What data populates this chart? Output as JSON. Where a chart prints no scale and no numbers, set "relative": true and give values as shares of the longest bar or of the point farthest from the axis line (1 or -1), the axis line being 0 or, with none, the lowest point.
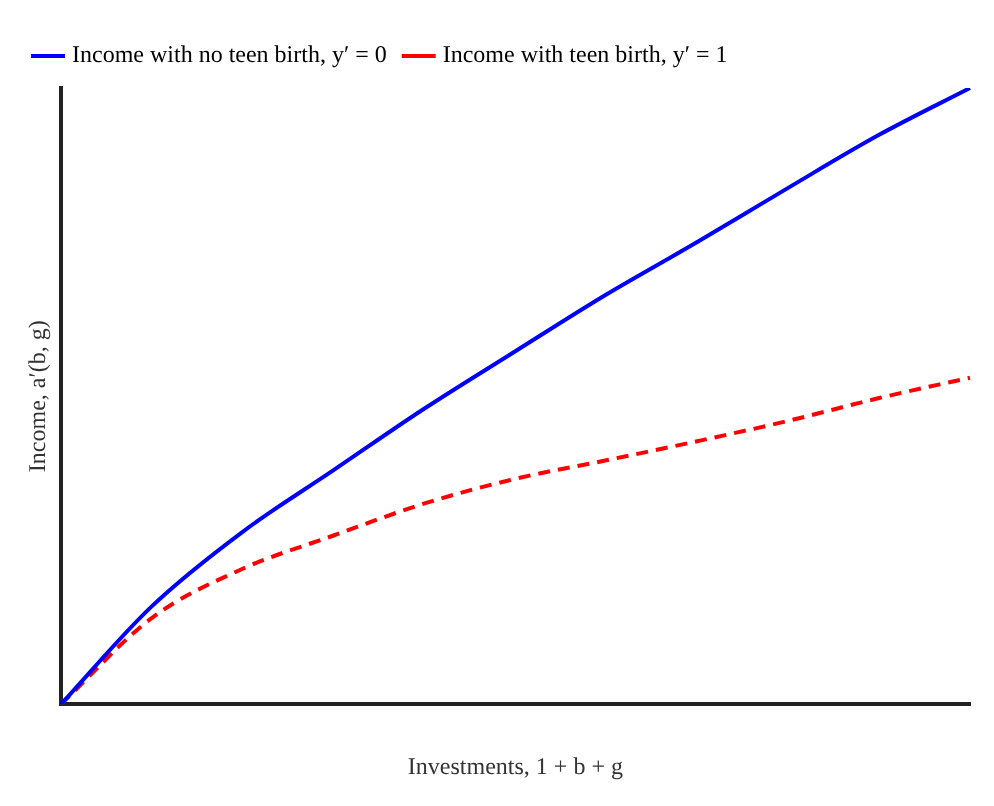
{
  "chart_data": {
    "type": "line",
    "relative": true,
    "xlabel": "Investments, 1 + b + g",
    "ylabel": "Income, a′(b, g)",
    "categories": [
      null,
      null,
      null,
      null,
      null,
      null,
      null,
      null,
      null,
      null,
      null
    ],
    "series": [
      {
        "name": "Income with no teen birth, y′ = 0",
        "color": "#0000ff",
        "line_style": "solid",
        "values": [
          0,
          0.159,
          0.28,
          0.38,
          0.48,
          0.573,
          0.665,
          0.75,
          0.838,
          0.924,
          1
        ]
      },
      {
        "name": "Income with teen birth, y′ = 1",
        "color": "#ff0000",
        "line_style": "dashed",
        "values": [
          0,
          0.14,
          0.22,
          0.274,
          0.326,
          0.366,
          0.396,
          0.427,
          0.46,
          0.497,
          0.53
        ]
      }
    ],
    "legend": "top left",
    "grid": false,
    "marker": "none"
  }
}
